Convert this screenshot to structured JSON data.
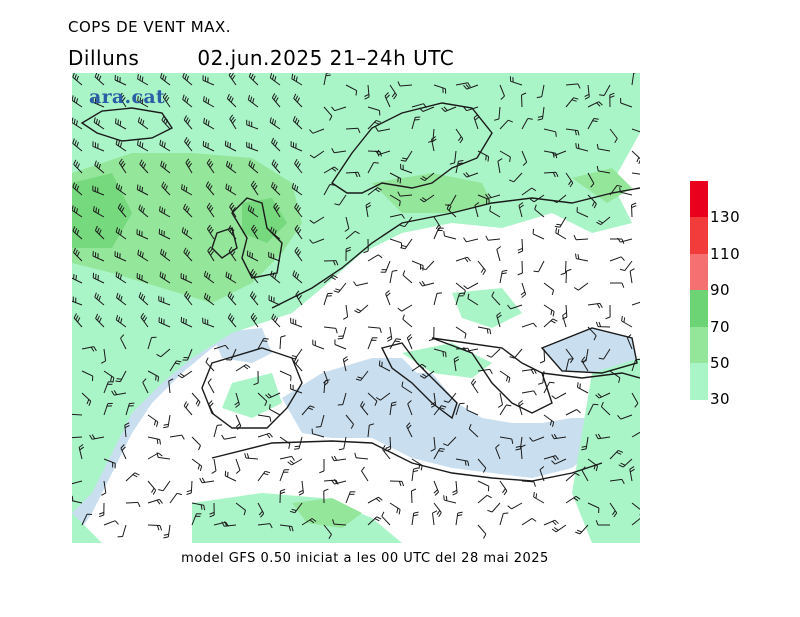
{
  "header": {
    "title": "COPS DE VENT MAX.",
    "day": "Dilluns",
    "datetime": "02.jun.2025 21–24h UTC"
  },
  "map": {
    "logo": "ara.cat",
    "colors": {
      "land": "#ffffff",
      "sea": "#c9dff0",
      "wind_30_50": "#aaf5c8",
      "wind_50_70": "#94e69a",
      "wind_70_90": "#6cd474"
    }
  },
  "legend": {
    "labels": [
      "130",
      "110",
      "90",
      "70",
      "50",
      "30"
    ],
    "bins": [
      {
        "color": "#e8001c"
      },
      {
        "color": "#f23b3b"
      },
      {
        "color": "#f57070"
      },
      {
        "color": "#6cd474"
      },
      {
        "color": "#94e69a"
      },
      {
        "color": "#aaf5c8"
      }
    ]
  },
  "footer": {
    "text": "model GFS 0.50 iniciat a les 00 UTC del 28 mai 2025"
  }
}
